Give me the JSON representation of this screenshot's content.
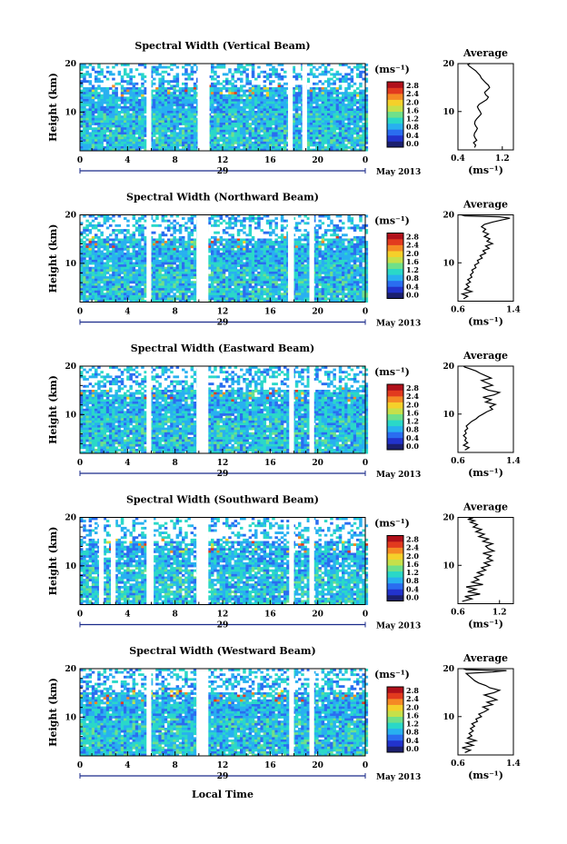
{
  "figure": {
    "xlabel": "Local Time",
    "date_label": "May 2013",
    "colorbar_unit": "(ms⁻¹)",
    "colorbar_ticks": [
      "0.0",
      "0.4",
      "0.8",
      "1.2",
      "1.6",
      "2.0",
      "2.4",
      "2.8"
    ],
    "colormap": [
      "#1b1f6e",
      "#2233cc",
      "#2a6df0",
      "#28b0f0",
      "#2ad8c8",
      "#6fe08a",
      "#c6e04a",
      "#f5d02a",
      "#f58a24",
      "#e23a1e",
      "#b0101a"
    ]
  },
  "chart_data": [
    {
      "type": "heatmap",
      "title": "Spectral Width (Vertical Beam)",
      "ylabel": "Height (km)",
      "ylim": [
        2,
        20
      ],
      "yticks": [
        10,
        20
      ],
      "xlim": [
        0,
        24
      ],
      "xticks": [
        "0",
        "4",
        "8",
        "12",
        "16",
        "20",
        "0"
      ],
      "day_label": "29",
      "color_range": [
        0.0,
        2.8
      ],
      "gaps_hours": [
        [
          5.6,
          6.0
        ],
        [
          9.9,
          10.9
        ],
        [
          17.5,
          17.9
        ],
        [
          18.7,
          19.1
        ]
      ],
      "profile": {
        "title": "Average",
        "xlabel": "(ms⁻¹)",
        "xlim": [
          0.4,
          1.4
        ],
        "xticks": [
          "0.4",
          "1.2"
        ],
        "ylim": [
          2,
          20
        ],
        "yticks": [
          10,
          20
        ],
        "x": [
          0.7,
          0.72,
          0.68,
          0.74,
          0.71,
          0.69,
          0.7,
          0.73,
          0.75,
          0.72,
          0.7,
          0.71,
          0.74,
          0.78,
          0.82,
          0.8,
          0.77,
          0.75,
          0.78,
          0.85,
          0.92,
          0.95,
          0.9,
          0.88,
          0.93,
          0.97,
          0.95,
          0.9,
          0.86,
          0.82,
          0.8,
          0.76,
          0.72,
          0.66,
          0.6,
          0.58,
          0.62,
          0.6
        ],
        "y": [
          2.5,
          3.0,
          3.5,
          4.0,
          4.5,
          5.0,
          5.5,
          6.0,
          6.5,
          7.0,
          7.5,
          8.0,
          8.5,
          9.0,
          9.5,
          10.0,
          10.5,
          11.0,
          11.5,
          12.0,
          12.5,
          13.0,
          13.5,
          14.0,
          14.5,
          15.0,
          15.5,
          16.0,
          16.5,
          17.0,
          17.5,
          18.0,
          18.5,
          19.0,
          19.5,
          19.8,
          20.0,
          20.0
        ]
      }
    },
    {
      "type": "heatmap",
      "title": "Spectral Width (Northward Beam)",
      "ylabel": "Height (km)",
      "ylim": [
        2,
        20
      ],
      "yticks": [
        10,
        20
      ],
      "xlim": [
        0,
        24
      ],
      "xticks": [
        "0",
        "4",
        "8",
        "12",
        "16",
        "20",
        "0"
      ],
      "day_label": "29",
      "color_range": [
        0.0,
        2.8
      ],
      "gaps_hours": [
        [
          5.6,
          6.0
        ],
        [
          9.8,
          10.8
        ],
        [
          17.5,
          18.0
        ],
        [
          19.3,
          19.7
        ]
      ],
      "profile": {
        "title": "Average",
        "xlabel": "(ms⁻¹)",
        "xlim": [
          0.6,
          1.4
        ],
        "xticks": [
          "0.6",
          "1.4"
        ],
        "ylim": [
          2,
          20
        ],
        "yticks": [
          10,
          20
        ],
        "x": [
          0.68,
          0.74,
          0.66,
          0.8,
          0.7,
          0.76,
          0.72,
          0.78,
          0.74,
          0.8,
          0.78,
          0.82,
          0.8,
          0.86,
          0.84,
          0.9,
          0.88,
          0.95,
          0.92,
          1.0,
          0.96,
          1.05,
          1.0,
          1.1,
          1.02,
          1.06,
          0.98,
          1.04,
          0.96,
          1.0,
          0.94,
          0.98,
          1.1,
          1.25,
          1.35,
          1.2,
          0.7,
          0.65
        ],
        "y": [
          2.5,
          3.0,
          3.5,
          4.0,
          4.5,
          5.0,
          5.5,
          6.0,
          6.5,
          7.0,
          7.5,
          8.0,
          8.5,
          9.0,
          9.5,
          10.0,
          10.5,
          11.0,
          11.5,
          12.0,
          12.5,
          13.0,
          13.5,
          14.0,
          14.5,
          15.0,
          15.5,
          16.0,
          16.5,
          17.0,
          17.5,
          18.0,
          18.5,
          19.0,
          19.3,
          19.6,
          19.8,
          20.0
        ]
      }
    },
    {
      "type": "heatmap",
      "title": "Spectral Width (Eastward Beam)",
      "ylabel": "Height (km)",
      "ylim": [
        2,
        20
      ],
      "yticks": [
        10,
        20
      ],
      "xlim": [
        0,
        24
      ],
      "xticks": [
        "0",
        "4",
        "8",
        "12",
        "16",
        "20",
        "0"
      ],
      "day_label": "29",
      "color_range": [
        0.0,
        2.8
      ],
      "gaps_hours": [
        [
          5.6,
          6.0
        ],
        [
          9.8,
          10.8
        ],
        [
          17.6,
          18.0
        ],
        [
          19.3,
          19.7
        ]
      ],
      "profile": {
        "title": "Average",
        "xlabel": "(ms⁻¹)",
        "xlim": [
          0.6,
          1.4
        ],
        "xticks": [
          "0.6",
          "1.4"
        ],
        "ylim": [
          2,
          20
        ],
        "yticks": [
          10,
          20
        ],
        "x": [
          0.7,
          0.76,
          0.68,
          0.74,
          0.7,
          0.72,
          0.68,
          0.72,
          0.7,
          0.74,
          0.72,
          0.76,
          0.8,
          0.86,
          0.9,
          0.96,
          1.02,
          1.1,
          1.06,
          1.14,
          1.0,
          1.08,
          0.96,
          1.12,
          1.2,
          1.04,
          0.96,
          1.1,
          1.02,
          0.94,
          1.08,
          1.0,
          0.92,
          0.86,
          0.8,
          0.74,
          0.7,
          0.68
        ],
        "y": [
          2.5,
          3.0,
          3.5,
          4.0,
          4.5,
          5.0,
          5.5,
          6.0,
          6.5,
          7.0,
          7.5,
          8.0,
          8.5,
          9.0,
          9.5,
          10.0,
          10.5,
          11.0,
          11.5,
          12.0,
          12.5,
          13.0,
          13.5,
          14.0,
          14.5,
          15.0,
          15.5,
          16.0,
          16.5,
          17.0,
          17.5,
          18.0,
          18.5,
          19.0,
          19.3,
          19.6,
          19.8,
          20.0
        ]
      }
    },
    {
      "type": "heatmap",
      "title": "Spectral Width (Southward Beam)",
      "ylabel": "Height (km)",
      "ylim": [
        2,
        20
      ],
      "yticks": [
        10,
        20
      ],
      "xlim": [
        0,
        24
      ],
      "xticks": [
        "0",
        "4",
        "8",
        "12",
        "16",
        "20",
        "0"
      ],
      "day_label": "29",
      "color_range": [
        0.0,
        2.8
      ],
      "gaps_hours": [
        [
          1.6,
          2.0
        ],
        [
          2.6,
          3.0
        ],
        [
          5.6,
          6.2
        ],
        [
          9.8,
          10.8
        ],
        [
          17.6,
          18.0
        ],
        [
          19.3,
          19.7
        ]
      ],
      "profile": {
        "title": "Average",
        "xlabel": "(ms⁻¹)",
        "xlim": [
          0.6,
          1.4
        ],
        "xticks": [
          "0.6",
          "1.2"
        ],
        "ylim": [
          2,
          20
        ],
        "yticks": [
          10,
          20
        ],
        "x": [
          0.66,
          0.8,
          0.7,
          0.92,
          0.74,
          0.86,
          0.72,
          0.96,
          0.8,
          0.9,
          0.84,
          0.96,
          0.88,
          1.0,
          0.94,
          1.06,
          0.98,
          1.1,
          1.02,
          1.08,
          0.96,
          1.12,
          1.04,
          1.0,
          1.1,
          0.96,
          1.04,
          0.9,
          0.98,
          0.86,
          0.94,
          0.82,
          0.88,
          0.78,
          0.84,
          0.74,
          0.8,
          0.76
        ],
        "y": [
          2.5,
          3.0,
          3.5,
          4.0,
          4.5,
          5.0,
          5.5,
          6.0,
          6.5,
          7.0,
          7.5,
          8.0,
          8.5,
          9.0,
          9.5,
          10.0,
          10.5,
          11.0,
          11.5,
          12.0,
          12.5,
          13.0,
          13.5,
          14.0,
          14.5,
          15.0,
          15.5,
          16.0,
          16.5,
          17.0,
          17.5,
          18.0,
          18.5,
          19.0,
          19.3,
          19.6,
          19.8,
          20.0
        ]
      }
    },
    {
      "type": "heatmap",
      "title": "Spectral Width (Westward Beam)",
      "ylabel": "Height (km)",
      "ylim": [
        2,
        20
      ],
      "yticks": [
        10,
        20
      ],
      "xlim": [
        0,
        24
      ],
      "xticks": [
        "0",
        "4",
        "8",
        "12",
        "16",
        "20",
        "0"
      ],
      "day_label": "29",
      "color_range": [
        0.0,
        2.8
      ],
      "gaps_hours": [
        [
          5.6,
          6.0
        ],
        [
          9.8,
          10.8
        ],
        [
          17.6,
          18.0
        ],
        [
          19.3,
          19.7
        ]
      ],
      "profile": {
        "title": "Average",
        "xlabel": "(ms⁻¹)",
        "xlim": [
          0.6,
          1.4
        ],
        "xticks": [
          "0.6",
          "1.4"
        ],
        "ylim": [
          2,
          20
        ],
        "yticks": [
          10,
          20
        ],
        "x": [
          0.7,
          0.78,
          0.66,
          0.82,
          0.72,
          0.86,
          0.74,
          0.8,
          0.76,
          0.82,
          0.78,
          0.84,
          0.8,
          0.88,
          0.86,
          0.94,
          0.9,
          0.98,
          1.04,
          0.96,
          1.1,
          1.02,
          1.16,
          1.08,
          0.98,
          1.12,
          1.2,
          1.06,
          1.0,
          0.9,
          0.84,
          0.8,
          0.76,
          0.72,
          1.1,
          1.3,
          0.72,
          0.68
        ],
        "y": [
          2.5,
          3.0,
          3.5,
          4.0,
          4.5,
          5.0,
          5.5,
          6.0,
          6.5,
          7.0,
          7.5,
          8.0,
          8.5,
          9.0,
          9.5,
          10.0,
          10.5,
          11.0,
          11.5,
          12.0,
          12.5,
          13.0,
          13.5,
          14.0,
          14.5,
          15.0,
          15.5,
          16.0,
          16.5,
          17.0,
          17.5,
          18.0,
          18.5,
          19.0,
          19.3,
          19.6,
          19.8,
          20.0
        ]
      }
    }
  ]
}
